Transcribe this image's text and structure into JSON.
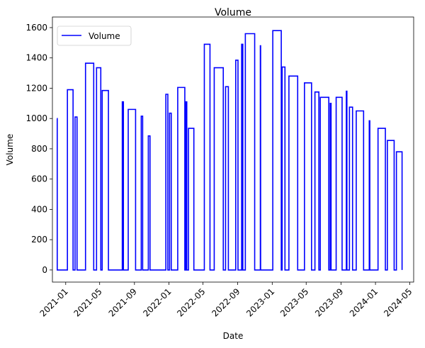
{
  "chart_data": {
    "type": "line",
    "title": "Volume",
    "xlabel": "Date",
    "ylabel": "Volume",
    "x_axis": "date",
    "xlim": [
      "2020-11-15",
      "2024-05-15"
    ],
    "ylim": [
      -80,
      1670
    ],
    "x_ticks": [
      "2021-01",
      "2021-05",
      "2021-09",
      "2022-01",
      "2022-05",
      "2022-09",
      "2023-01",
      "2023-05",
      "2023-09",
      "2024-01",
      "2024-05"
    ],
    "x_tick_dates": [
      "2021-01-01",
      "2021-05-01",
      "2021-09-01",
      "2022-01-01",
      "2022-05-01",
      "2022-09-01",
      "2023-01-01",
      "2023-05-01",
      "2023-09-01",
      "2024-01-01",
      "2024-05-01"
    ],
    "y_ticks": [
      0,
      200,
      400,
      600,
      800,
      1000,
      1200,
      1400,
      1600
    ],
    "legend": {
      "position": "top-left"
    },
    "grid": false,
    "series": [
      {
        "name": "Volume",
        "color": "#0000ff",
        "step": true,
        "points": [
          [
            "2020-12-01",
            1000
          ],
          [
            "2020-12-02",
            0
          ],
          [
            "2021-01-07",
            1190
          ],
          [
            "2021-01-27",
            0
          ],
          [
            "2021-02-03",
            1010
          ],
          [
            "2021-02-10",
            0
          ],
          [
            "2021-03-12",
            1365
          ],
          [
            "2021-04-10",
            0
          ],
          [
            "2021-04-20",
            1335
          ],
          [
            "2021-05-05",
            0
          ],
          [
            "2021-05-10",
            1185
          ],
          [
            "2021-06-01",
            0
          ],
          [
            "2021-07-20",
            1110
          ],
          [
            "2021-07-24",
            0
          ],
          [
            "2021-08-10",
            1060
          ],
          [
            "2021-09-05",
            0
          ],
          [
            "2021-09-25",
            1015
          ],
          [
            "2021-09-30",
            0
          ],
          [
            "2021-10-20",
            885
          ],
          [
            "2021-10-26",
            0
          ],
          [
            "2021-12-21",
            1160
          ],
          [
            "2021-12-28",
            0
          ],
          [
            "2022-01-03",
            1035
          ],
          [
            "2022-01-09",
            0
          ],
          [
            "2022-02-01",
            1205
          ],
          [
            "2022-02-26",
            0
          ],
          [
            "2022-03-02",
            1110
          ],
          [
            "2022-03-05",
            0
          ],
          [
            "2022-03-11",
            935
          ],
          [
            "2022-03-30",
            0
          ],
          [
            "2022-05-06",
            1490
          ],
          [
            "2022-05-26",
            0
          ],
          [
            "2022-06-10",
            1335
          ],
          [
            "2022-07-12",
            0
          ],
          [
            "2022-07-20",
            1210
          ],
          [
            "2022-07-30",
            0
          ],
          [
            "2022-08-25",
            1385
          ],
          [
            "2022-09-02",
            0
          ],
          [
            "2022-09-15",
            1490
          ],
          [
            "2022-09-19",
            0
          ],
          [
            "2022-09-28",
            1560
          ],
          [
            "2022-10-31",
            0
          ],
          [
            "2022-11-20",
            1480
          ],
          [
            "2022-11-21",
            0
          ],
          [
            "2023-01-03",
            1580
          ],
          [
            "2023-02-02",
            0
          ],
          [
            "2023-02-05",
            1340
          ],
          [
            "2023-02-15",
            0
          ],
          [
            "2023-03-01",
            1280
          ],
          [
            "2023-04-01",
            0
          ],
          [
            "2023-04-25",
            1235
          ],
          [
            "2023-05-20",
            0
          ],
          [
            "2023-06-01",
            1175
          ],
          [
            "2023-06-15",
            0
          ],
          [
            "2023-06-20",
            1140
          ],
          [
            "2023-07-20",
            0
          ],
          [
            "2023-07-25",
            1100
          ],
          [
            "2023-07-28",
            0
          ],
          [
            "2023-08-15",
            1140
          ],
          [
            "2023-09-05",
            0
          ],
          [
            "2023-09-20",
            1180
          ],
          [
            "2023-09-22",
            0
          ],
          [
            "2023-10-01",
            1075
          ],
          [
            "2023-10-12",
            0
          ],
          [
            "2023-10-25",
            1050
          ],
          [
            "2023-11-20",
            0
          ],
          [
            "2023-12-10",
            985
          ],
          [
            "2023-12-12",
            0
          ],
          [
            "2024-01-10",
            935
          ],
          [
            "2024-02-05",
            0
          ],
          [
            "2024-02-12",
            855
          ],
          [
            "2024-03-07",
            0
          ],
          [
            "2024-03-15",
            780
          ],
          [
            "2024-04-04",
            0
          ]
        ]
      }
    ]
  }
}
